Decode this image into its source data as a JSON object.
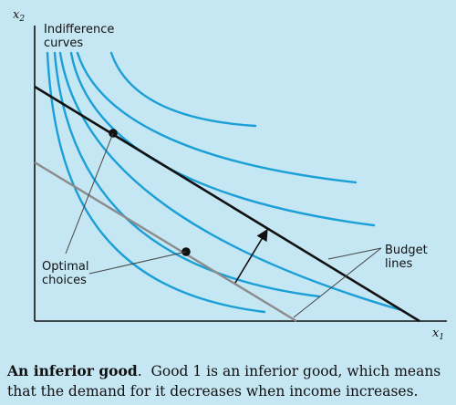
{
  "axes": {
    "y_label": "x",
    "y_sub": "2",
    "x_label": "x",
    "x_sub": "1"
  },
  "labels": {
    "indifference_line1": "Indifference",
    "indifference_line2": "curves",
    "optimal_line1": "Optimal",
    "optimal_line2": "choices",
    "budget_line1": "Budget",
    "budget_line2": "lines"
  },
  "caption": {
    "title": "An inferior good",
    "period": ".",
    "body": "Good 1 is an inferior good, which means that the demand for it decreases when income increases."
  },
  "colors": {
    "background": "#c5e6f3",
    "indifference_curve": "#1a9fd6",
    "budget_line_high": "#111111",
    "budget_line_low": "#8c8c8c",
    "axis": "#111111"
  }
}
